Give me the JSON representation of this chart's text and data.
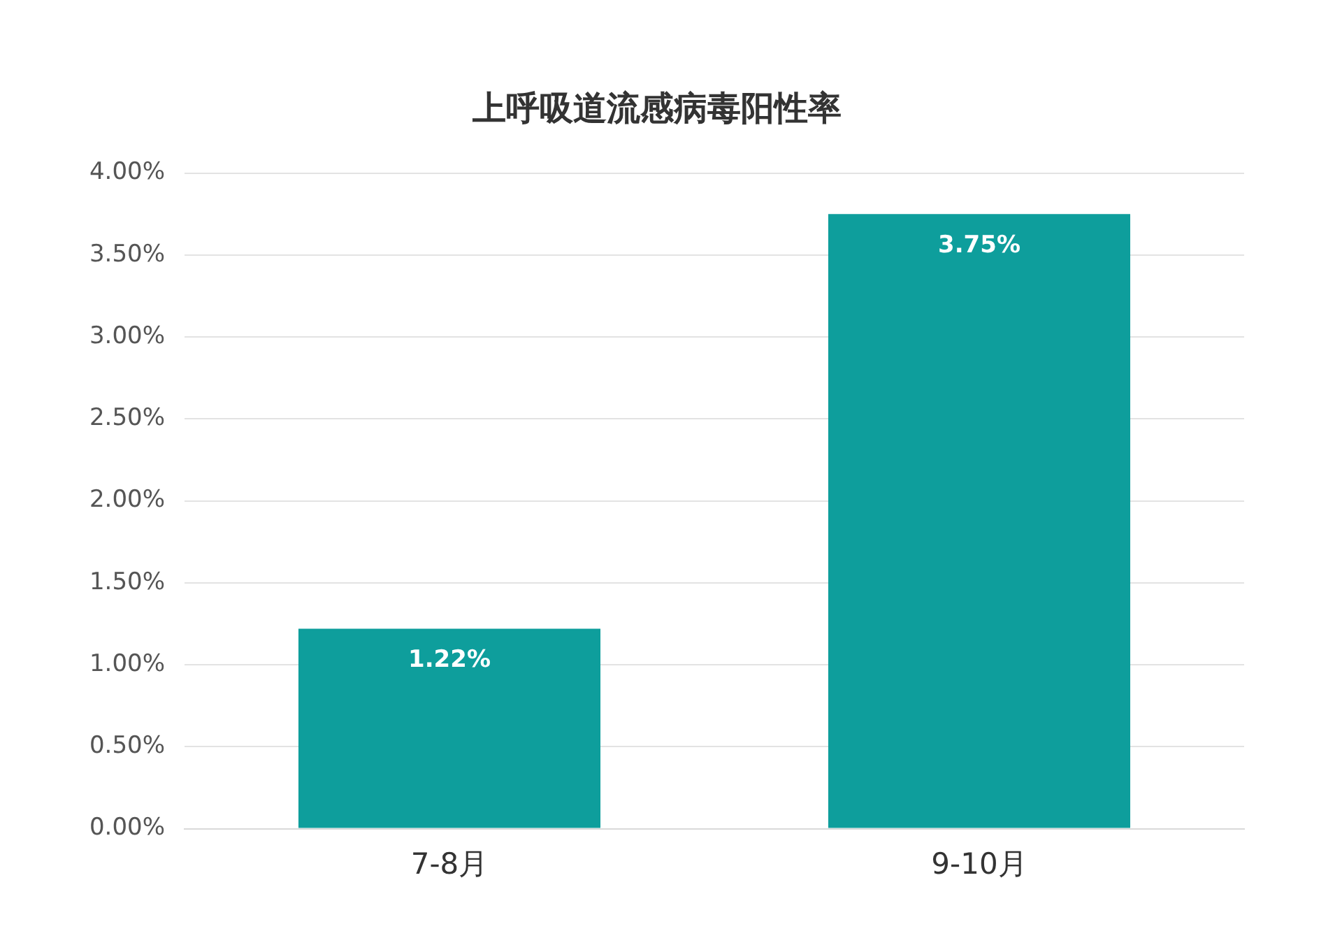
{
  "chart_data": {
    "type": "bar",
    "title": "上呼吸道流感病毒阳性率",
    "categories": [
      "7-8月",
      "9-10月"
    ],
    "series": [
      {
        "color": "#0e9e9c",
        "values": [
          1.22,
          3.75
        ],
        "value_labels": [
          "1.22%",
          "3.75%"
        ]
      }
    ],
    "ylim": [
      0,
      4
    ],
    "yticks": [
      {
        "value": 0,
        "label": "0.00%"
      },
      {
        "value": 0.5,
        "label": "0.50%"
      },
      {
        "value": 1,
        "label": "1.00%"
      },
      {
        "value": 1.5,
        "label": "1.50%"
      },
      {
        "value": 2,
        "label": "2.00%"
      },
      {
        "value": 2.5,
        "label": "2.50%"
      },
      {
        "value": 3,
        "label": "3.00%"
      },
      {
        "value": 3.5,
        "label": "3.50%"
      },
      {
        "value": 4,
        "label": "4.00%"
      }
    ],
    "grid": "y",
    "legend": false
  }
}
